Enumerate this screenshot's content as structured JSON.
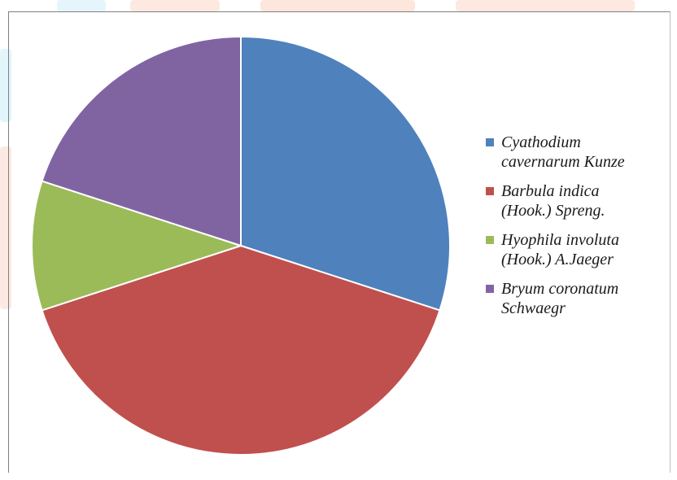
{
  "chart_data": {
    "type": "pie",
    "title": "",
    "slices": [
      {
        "label": "Cyathodium cavernarum Kunze",
        "value": 30,
        "color": "#4f81bd"
      },
      {
        "label": "Barbula indica (Hook.) Spreng.",
        "value": 40,
        "color": "#c0504d"
      },
      {
        "label": "Hyophila involuta (Hook.) A.Jaeger",
        "value": 10,
        "color": "#9bbb59"
      },
      {
        "label": "Bryum coronatum Schwaegr",
        "value": 20,
        "color": "#8064a2"
      }
    ],
    "legend_position": "right",
    "legend_lines": [
      [
        "Cyathodium",
        "cavernarum Kunze"
      ],
      [
        "Barbula indica",
        "(Hook.) Spreng."
      ],
      [
        "Hyophila involuta",
        "(Hook.) A.Jaeger"
      ],
      [
        "Bryum coronatum",
        "Schwaegr"
      ]
    ]
  }
}
